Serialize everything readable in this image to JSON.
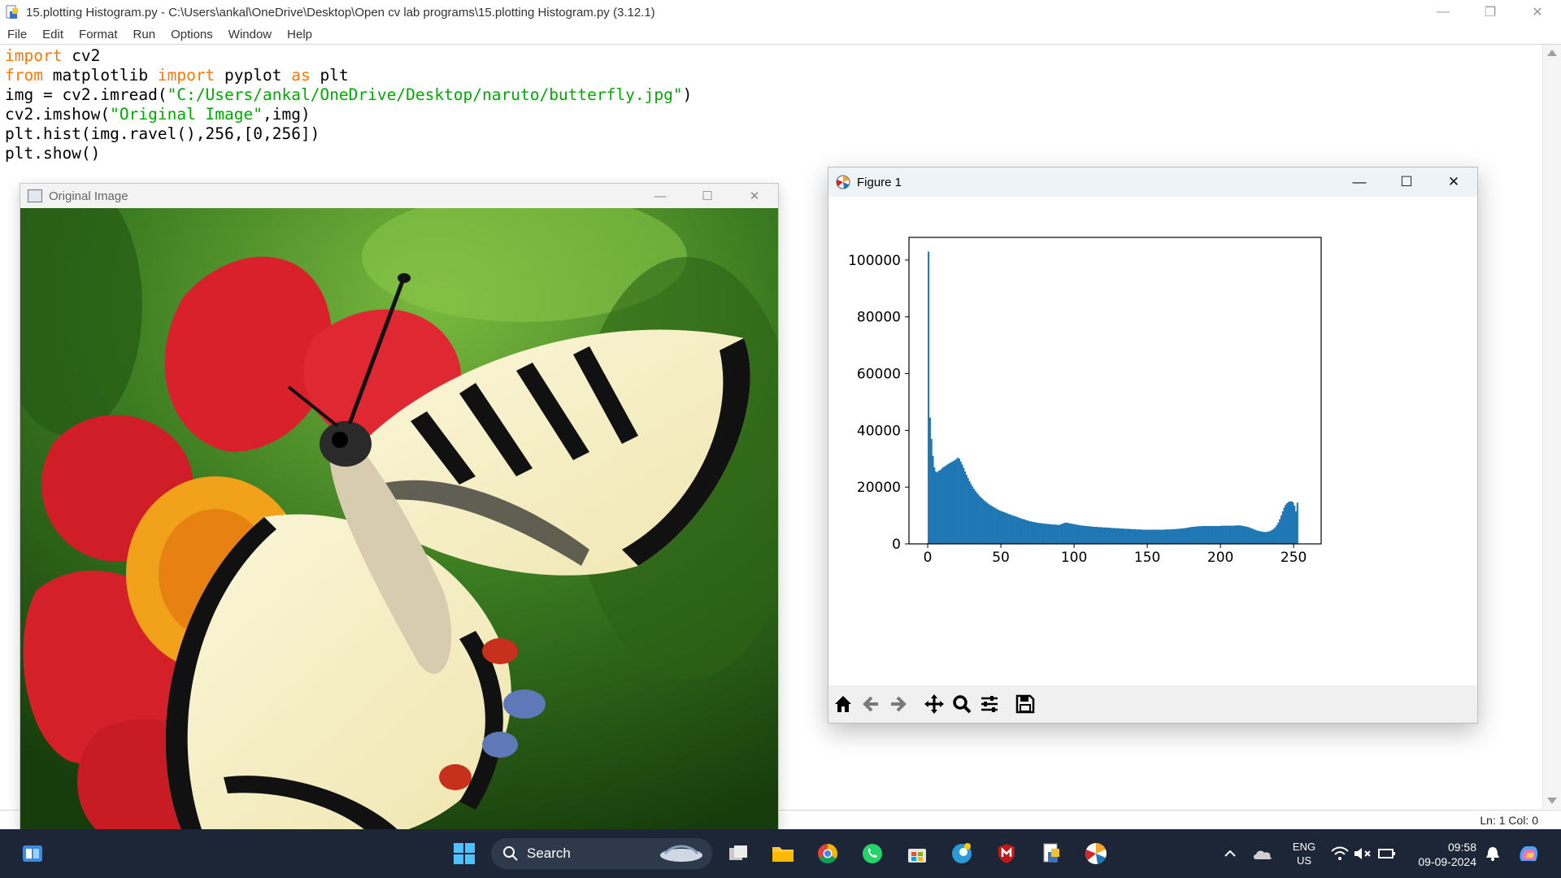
{
  "idle": {
    "title": "15.plotting Histogram.py - C:\\Users\\ankal\\OneDrive\\Desktop\\Open cv lab programs\\15.plotting Histogram.py (3.12.1)",
    "menu": [
      "File",
      "Edit",
      "Format",
      "Run",
      "Options",
      "Window",
      "Help"
    ],
    "code": [
      [
        {
          "t": "import",
          "c": "kw"
        },
        {
          "t": " cv2",
          "c": ""
        }
      ],
      [
        {
          "t": "from",
          "c": "kw"
        },
        {
          "t": " matplotlib ",
          "c": ""
        },
        {
          "t": "import",
          "c": "kw"
        },
        {
          "t": " pyplot ",
          "c": ""
        },
        {
          "t": "as",
          "c": "kw"
        },
        {
          "t": " plt",
          "c": ""
        }
      ],
      [
        {
          "t": "img = cv2.imread(",
          "c": ""
        },
        {
          "t": "\"C:/Users/ankal/OneDrive/Desktop/naruto/butterfly.jpg\"",
          "c": "str"
        },
        {
          "t": ")",
          "c": ""
        }
      ],
      [
        {
          "t": "cv2.imshow(",
          "c": ""
        },
        {
          "t": "\"Original Image\"",
          "c": "str"
        },
        {
          "t": ",img)",
          "c": ""
        }
      ],
      [
        {
          "t": "plt.hist(img.ravel(),256,[0,256])",
          "c": ""
        }
      ],
      [
        {
          "t": "plt.show()",
          "c": ""
        }
      ]
    ],
    "status": "Ln: 1   Col: 0"
  },
  "image_window": {
    "title": "Original Image"
  },
  "figure_window": {
    "title": "Figure 1"
  },
  "chart_data": {
    "type": "bar",
    "title": "",
    "xlabel": "",
    "ylabel": "",
    "xlim": [
      -12.8,
      268.8
    ],
    "ylim": [
      0,
      108000
    ],
    "xticks": [
      0,
      50,
      100,
      150,
      200,
      250
    ],
    "yticks": [
      0,
      20000,
      40000,
      60000,
      80000,
      100000
    ],
    "bar_color": "#1f77b4",
    "grid": false,
    "bins_start": 0,
    "bin_width": 1,
    "counts": [
      103000,
      44500,
      37000,
      31000,
      27000,
      25500,
      25200,
      25800,
      26000,
      26500,
      27000,
      27300,
      27600,
      28000,
      28300,
      28600,
      28900,
      29200,
      29500,
      29900,
      30400,
      30000,
      29000,
      28000,
      26800,
      25500,
      24300,
      23200,
      22100,
      21100,
      20200,
      19400,
      18700,
      18000,
      17400,
      16800,
      16300,
      15800,
      15300,
      14900,
      14500,
      14100,
      13700,
      13400,
      13100,
      12800,
      12500,
      12200,
      11900,
      11700,
      11500,
      11300,
      11100,
      10900,
      10700,
      10500,
      10300,
      10100,
      9900,
      9800,
      9600,
      9400,
      9200,
      9000,
      8800,
      8700,
      8500,
      8300,
      8200,
      8000,
      7900,
      7800,
      7700,
      7600,
      7500,
      7400,
      7300,
      7300,
      7200,
      7100,
      7100,
      7000,
      7000,
      6900,
      6900,
      6800,
      6800,
      6800,
      6700,
      6700,
      6800,
      7000,
      7200,
      7400,
      7500,
      7400,
      7300,
      7200,
      7100,
      7000,
      6900,
      6800,
      6700,
      6600,
      6500,
      6500,
      6400,
      6300,
      6300,
      6200,
      6200,
      6100,
      6100,
      6000,
      6000,
      6000,
      5900,
      5900,
      5900,
      5800,
      5800,
      5800,
      5700,
      5700,
      5700,
      5600,
      5600,
      5600,
      5500,
      5500,
      5500,
      5400,
      5400,
      5400,
      5300,
      5300,
      5300,
      5300,
      5200,
      5200,
      5200,
      5200,
      5100,
      5100,
      5100,
      5100,
      5000,
      5000,
      5000,
      5000,
      5000,
      5000,
      5000,
      5000,
      5000,
      5000,
      5000,
      5000,
      5000,
      5000,
      5000,
      5000,
      5100,
      5100,
      5100,
      5100,
      5100,
      5200,
      5200,
      5200,
      5300,
      5300,
      5400,
      5400,
      5500,
      5500,
      5600,
      5700,
      5800,
      5900,
      6000,
      6000,
      6100,
      6100,
      6200,
      6200,
      6200,
      6300,
      6300,
      6300,
      6300,
      6300,
      6300,
      6300,
      6300,
      6300,
      6300,
      6300,
      6300,
      6300,
      6400,
      6400,
      6400,
      6400,
      6400,
      6400,
      6400,
      6400,
      6400,
      6400,
      6500,
      6500,
      6500,
      6500,
      6400,
      6300,
      6200,
      6100,
      6000,
      5800,
      5600,
      5400,
      5200,
      5000,
      4800,
      4600,
      4500,
      4400,
      4300,
      4200,
      4200,
      4200,
      4300,
      4500,
      4700,
      5000,
      5400,
      5900,
      6600,
      7500,
      8700,
      10000,
      11500,
      12800,
      13800,
      14400,
      14800,
      15000,
      15000,
      14700,
      13500,
      11500,
      14500
    ]
  },
  "taskbar": {
    "search_label": "Search",
    "lang": "ENG",
    "region": "US",
    "time": "09:58",
    "date": "09-09-2024"
  }
}
